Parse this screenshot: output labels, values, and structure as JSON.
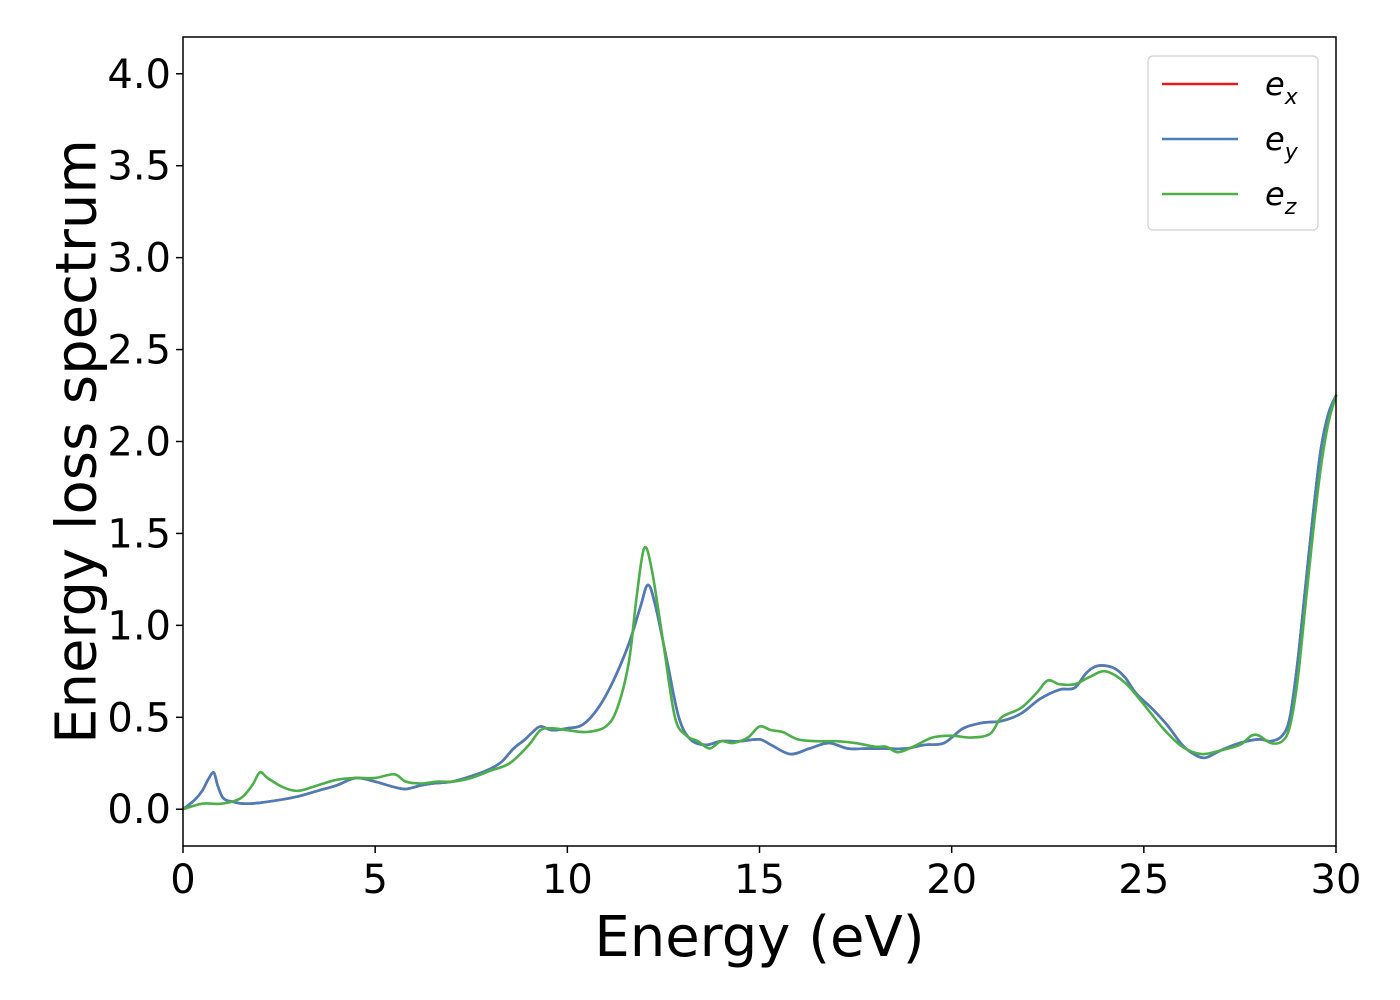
{
  "chart_data": {
    "type": "line",
    "title": "",
    "xlabel": "Energy (eV)",
    "ylabel": "Energy loss spectrum",
    "xlim": [
      0,
      30
    ],
    "ylim": [
      -0.2,
      4.2
    ],
    "xticks": [
      0,
      5,
      10,
      15,
      20,
      25,
      30
    ],
    "xtick_labels": [
      "0",
      "5",
      "10",
      "15",
      "20",
      "25",
      "30"
    ],
    "yticks": [
      0.0,
      0.5,
      1.0,
      1.5,
      2.0,
      2.5,
      3.0,
      3.5,
      4.0
    ],
    "ytick_labels": [
      "0.0",
      "0.5",
      "1.0",
      "1.5",
      "2.0",
      "2.5",
      "3.0",
      "3.5",
      "4.0"
    ],
    "grid": false,
    "legend_position": "top-right",
    "series": [
      {
        "name": "e_x",
        "base": "e",
        "sub": "x",
        "color": "#e41a1c",
        "x": [
          0,
          0.3,
          0.5,
          0.65,
          0.8,
          0.9,
          1.05,
          1.3,
          1.6,
          2.0,
          2.5,
          3.0,
          3.5,
          4.0,
          4.5,
          5.0,
          5.5,
          5.8,
          6.2,
          6.5,
          7.0,
          7.5,
          8.0,
          8.3,
          8.6,
          8.9,
          9.1,
          9.3,
          9.6,
          10.0,
          10.4,
          10.8,
          11.2,
          11.6,
          11.9,
          12.1,
          12.3,
          12.6,
          12.9,
          13.2,
          13.6,
          14.0,
          14.5,
          15.0,
          15.3,
          15.8,
          16.3,
          16.8,
          17.3,
          17.8,
          18.3,
          18.8,
          19.3,
          19.8,
          20.3,
          20.8,
          21.3,
          21.8,
          22.3,
          22.8,
          23.2,
          23.5,
          23.8,
          24.2,
          24.5,
          24.8,
          25.2,
          25.6,
          26.0,
          26.3,
          26.6,
          27.0,
          27.5,
          28.0,
          28.3,
          28.6,
          28.8,
          29.0,
          29.2,
          29.4,
          29.6,
          29.8,
          30.0
        ],
        "y": [
          0.0,
          0.05,
          0.1,
          0.16,
          0.2,
          0.13,
          0.06,
          0.04,
          0.03,
          0.035,
          0.05,
          0.07,
          0.1,
          0.13,
          0.17,
          0.15,
          0.12,
          0.11,
          0.13,
          0.14,
          0.15,
          0.18,
          0.22,
          0.26,
          0.33,
          0.38,
          0.42,
          0.45,
          0.43,
          0.44,
          0.46,
          0.55,
          0.7,
          0.9,
          1.1,
          1.22,
          1.1,
          0.8,
          0.5,
          0.38,
          0.35,
          0.37,
          0.37,
          0.38,
          0.35,
          0.3,
          0.33,
          0.36,
          0.33,
          0.33,
          0.33,
          0.33,
          0.35,
          0.36,
          0.44,
          0.47,
          0.48,
          0.52,
          0.6,
          0.65,
          0.66,
          0.74,
          0.78,
          0.77,
          0.72,
          0.63,
          0.55,
          0.46,
          0.35,
          0.3,
          0.28,
          0.32,
          0.36,
          0.38,
          0.37,
          0.4,
          0.5,
          0.8,
          1.2,
          1.6,
          1.95,
          2.15,
          2.25
        ]
      },
      {
        "name": "e_y",
        "base": "e",
        "sub": "y",
        "color": "#4a7eb8",
        "x": [
          0,
          0.3,
          0.5,
          0.65,
          0.8,
          0.9,
          1.05,
          1.3,
          1.6,
          2.0,
          2.5,
          3.0,
          3.5,
          4.0,
          4.5,
          5.0,
          5.5,
          5.8,
          6.2,
          6.5,
          7.0,
          7.5,
          8.0,
          8.3,
          8.6,
          8.9,
          9.1,
          9.3,
          9.6,
          10.0,
          10.4,
          10.8,
          11.2,
          11.6,
          11.9,
          12.1,
          12.3,
          12.6,
          12.9,
          13.2,
          13.6,
          14.0,
          14.5,
          15.0,
          15.3,
          15.8,
          16.3,
          16.8,
          17.3,
          17.8,
          18.3,
          18.8,
          19.3,
          19.8,
          20.3,
          20.8,
          21.3,
          21.8,
          22.3,
          22.8,
          23.2,
          23.5,
          23.8,
          24.2,
          24.5,
          24.8,
          25.2,
          25.6,
          26.0,
          26.3,
          26.6,
          27.0,
          27.5,
          28.0,
          28.3,
          28.6,
          28.8,
          29.0,
          29.2,
          29.4,
          29.6,
          29.8,
          30.0
        ],
        "y": [
          0.0,
          0.05,
          0.1,
          0.16,
          0.2,
          0.13,
          0.06,
          0.04,
          0.03,
          0.035,
          0.05,
          0.07,
          0.1,
          0.13,
          0.17,
          0.15,
          0.12,
          0.11,
          0.13,
          0.14,
          0.15,
          0.18,
          0.22,
          0.26,
          0.33,
          0.38,
          0.42,
          0.45,
          0.43,
          0.44,
          0.46,
          0.55,
          0.7,
          0.9,
          1.1,
          1.22,
          1.1,
          0.8,
          0.5,
          0.38,
          0.35,
          0.37,
          0.37,
          0.38,
          0.35,
          0.3,
          0.33,
          0.36,
          0.33,
          0.33,
          0.33,
          0.33,
          0.35,
          0.36,
          0.44,
          0.47,
          0.48,
          0.52,
          0.6,
          0.65,
          0.66,
          0.74,
          0.78,
          0.77,
          0.72,
          0.63,
          0.55,
          0.46,
          0.35,
          0.3,
          0.28,
          0.32,
          0.36,
          0.38,
          0.37,
          0.4,
          0.5,
          0.8,
          1.2,
          1.6,
          1.95,
          2.15,
          2.25
        ]
      },
      {
        "name": "e_z",
        "base": "e",
        "sub": "z",
        "color": "#4daf4a",
        "x": [
          0,
          0.5,
          1.0,
          1.5,
          1.8,
          2.0,
          2.2,
          2.6,
          3.0,
          3.5,
          4.0,
          4.5,
          5.0,
          5.5,
          5.8,
          6.2,
          6.6,
          7.0,
          7.5,
          8.0,
          8.5,
          9.0,
          9.3,
          9.6,
          10.0,
          10.5,
          11.0,
          11.3,
          11.6,
          11.8,
          12.0,
          12.2,
          12.5,
          12.8,
          13.1,
          13.4,
          13.7,
          14.0,
          14.3,
          14.7,
          15.0,
          15.3,
          15.6,
          16.0,
          16.5,
          17.0,
          17.5,
          18.0,
          18.3,
          18.6,
          19.0,
          19.5,
          20.0,
          20.5,
          21.0,
          21.3,
          21.8,
          22.2,
          22.5,
          22.8,
          23.2,
          23.6,
          24.0,
          24.5,
          25.0,
          25.5,
          26.0,
          26.5,
          27.0,
          27.5,
          27.8,
          28.0,
          28.3,
          28.6,
          28.8,
          29.0,
          29.2,
          29.4,
          29.6,
          29.8,
          30.0
        ],
        "y": [
          0.0,
          0.03,
          0.03,
          0.06,
          0.13,
          0.2,
          0.17,
          0.12,
          0.1,
          0.13,
          0.16,
          0.17,
          0.17,
          0.19,
          0.15,
          0.14,
          0.15,
          0.15,
          0.17,
          0.21,
          0.25,
          0.35,
          0.43,
          0.44,
          0.43,
          0.42,
          0.45,
          0.55,
          0.8,
          1.15,
          1.42,
          1.3,
          0.9,
          0.5,
          0.4,
          0.37,
          0.33,
          0.37,
          0.36,
          0.39,
          0.45,
          0.43,
          0.42,
          0.38,
          0.37,
          0.37,
          0.36,
          0.34,
          0.34,
          0.31,
          0.34,
          0.39,
          0.4,
          0.39,
          0.41,
          0.5,
          0.55,
          0.63,
          0.7,
          0.68,
          0.68,
          0.72,
          0.75,
          0.69,
          0.57,
          0.44,
          0.34,
          0.3,
          0.32,
          0.35,
          0.4,
          0.4,
          0.36,
          0.37,
          0.45,
          0.7,
          1.1,
          1.5,
          1.85,
          2.1,
          2.25
        ]
      }
    ]
  }
}
